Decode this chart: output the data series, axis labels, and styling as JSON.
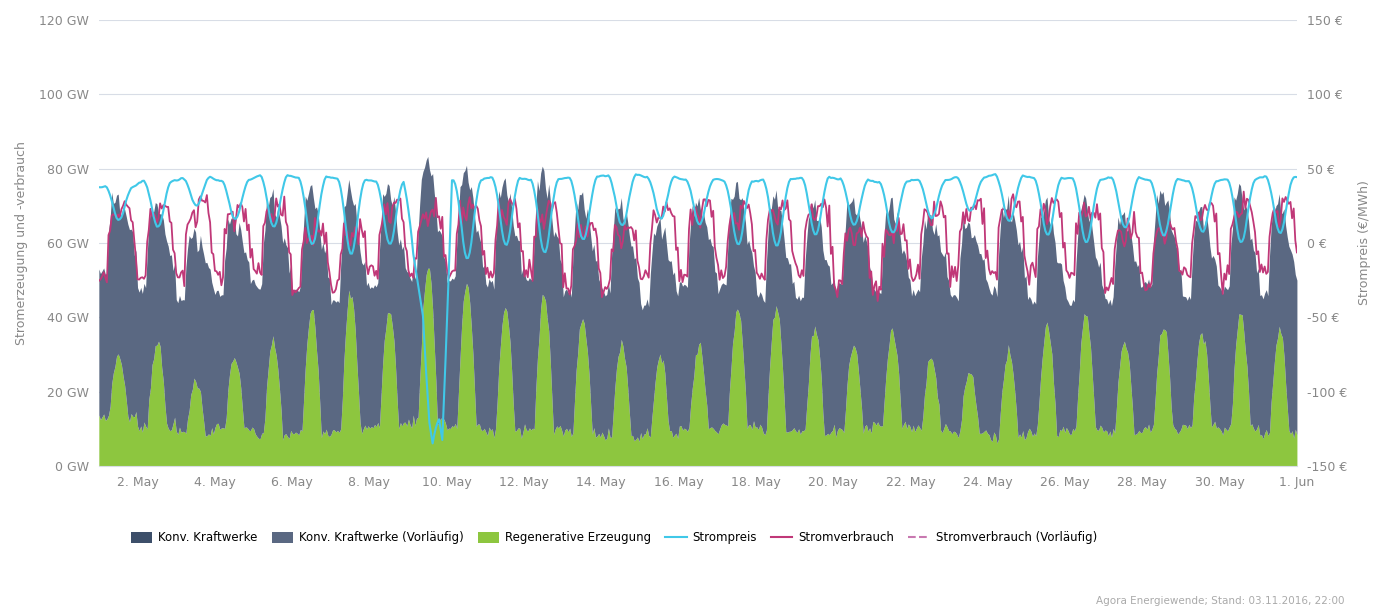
{
  "title": "",
  "ylabel_left": "Stromerzeugung und -verbrauch",
  "ylabel_right": "Strompreis (€/MWh)",
  "ylim_left": [
    0,
    120
  ],
  "ylim_right": [
    -150,
    150
  ],
  "yticks_left": [
    0,
    20,
    40,
    60,
    80,
    100,
    120
  ],
  "yticks_right": [
    -150,
    -100,
    -50,
    0,
    50,
    100,
    150
  ],
  "ytick_labels_left": [
    "0 GW",
    "20 GW",
    "40 GW",
    "60 GW",
    "80 GW",
    "100 GW",
    "120 GW"
  ],
  "ytick_labels_right": [
    "-150 €",
    "-100 €",
    "-50 €",
    "0 €",
    "50 €",
    "100 €",
    "150 €"
  ],
  "color_conv": "#5a6882",
  "color_renew": "#8dc63f",
  "color_price": "#40c8e8",
  "color_consumption": "#c03878",
  "color_consumption_prel": "#c878b0",
  "background_color": "#ffffff",
  "grid_color": "#d8dde6",
  "n_hours": 744,
  "footnote": "Agora Energiewende; Stand: 03.11.2016, 22:00",
  "legend_entries": [
    "Konv. Kraftwerke",
    "Konv. Kraftwerke (Vorläufig)",
    "Regenerative Erzeugung",
    "Strompreis",
    "Stromverbrauch",
    "Stromverbrauch (Vorläufig)"
  ]
}
